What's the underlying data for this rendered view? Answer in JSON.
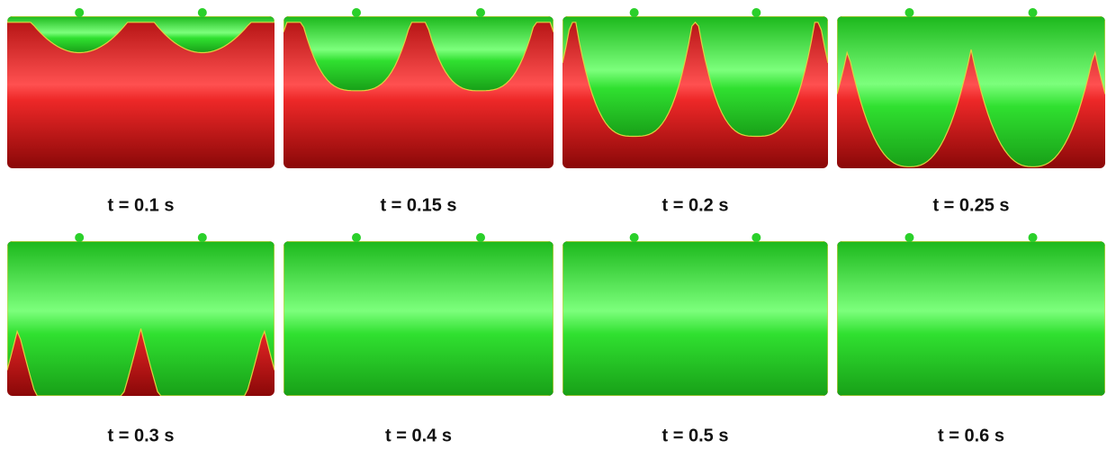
{
  "panels": [
    {
      "label": "t = 0.1 s"
    },
    {
      "label": "t = 0.15 s"
    },
    {
      "label": "t = 0.2 s"
    },
    {
      "label": "t = 0.25 s"
    },
    {
      "label": "t = 0.3 s"
    },
    {
      "label": "t = 0.4 s"
    },
    {
      "label": "t = 0.5 s"
    },
    {
      "label": "t = 0.6 s"
    }
  ]
}
